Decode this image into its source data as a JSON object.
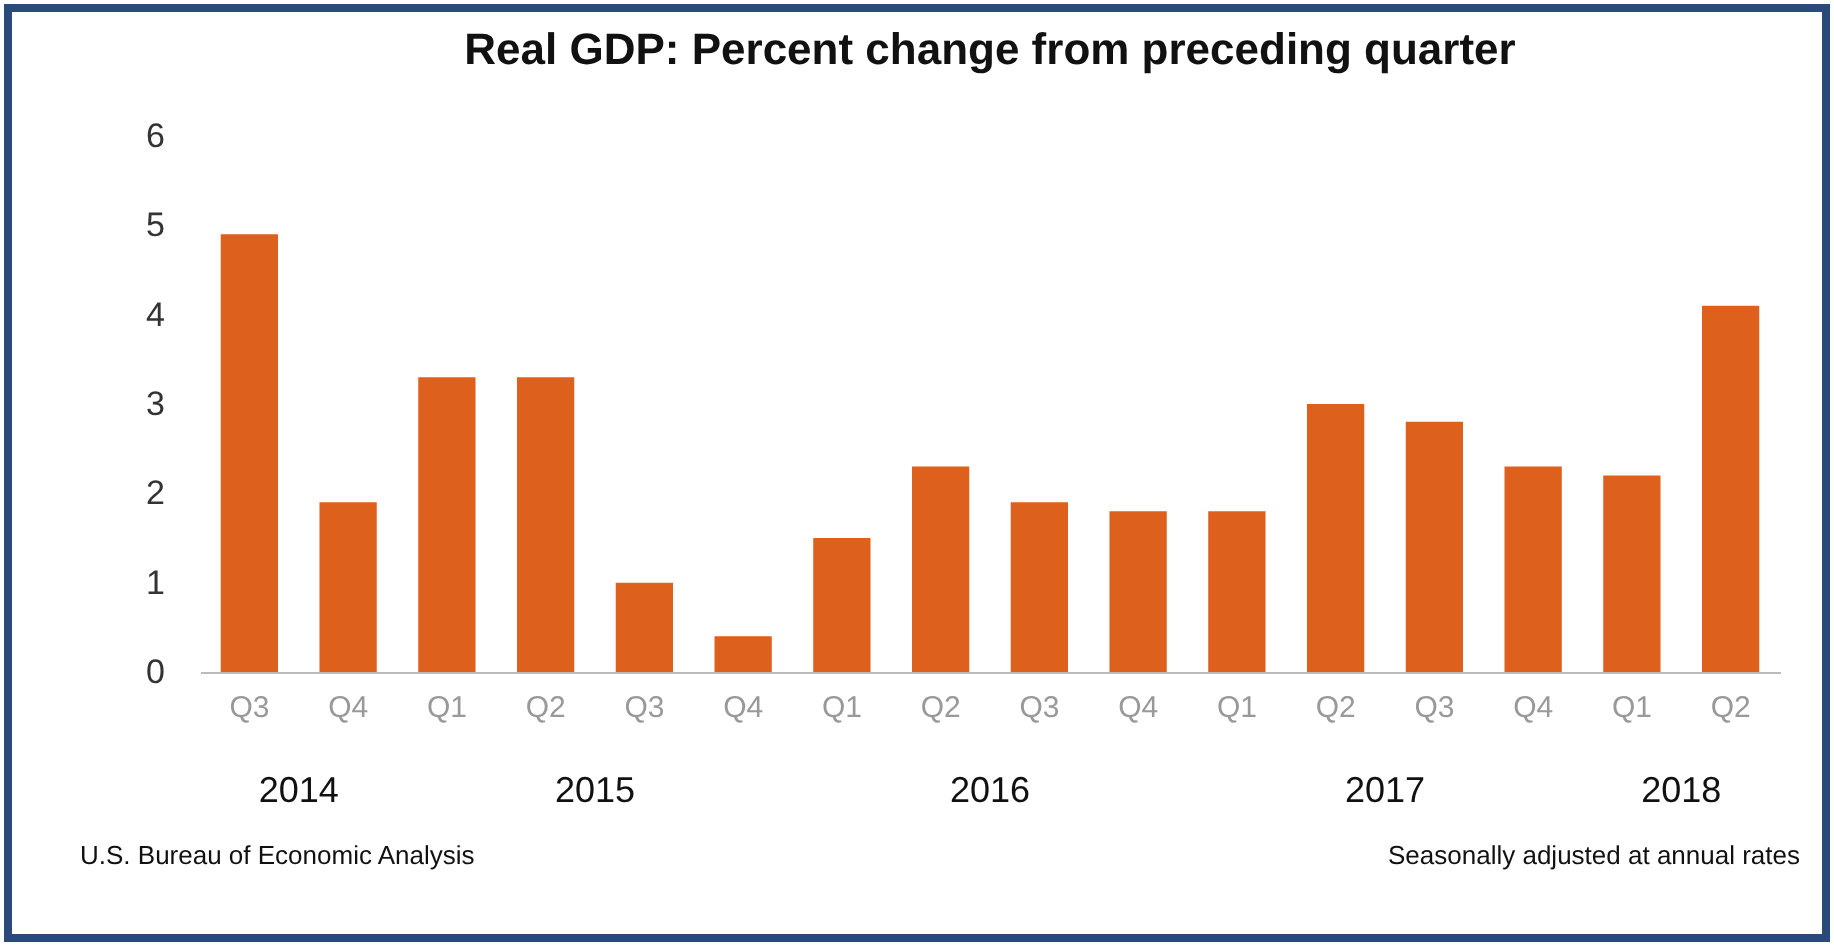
{
  "chart_data": {
    "type": "bar",
    "title": "Real GDP:  Percent change from preceding quarter",
    "categories": [
      "Q3",
      "Q4",
      "Q1",
      "Q2",
      "Q3",
      "Q4",
      "Q1",
      "Q2",
      "Q3",
      "Q4",
      "Q1",
      "Q2",
      "Q3",
      "Q4",
      "Q1",
      "Q2"
    ],
    "values": [
      4.9,
      1.9,
      3.3,
      3.3,
      1.0,
      0.4,
      1.5,
      2.3,
      1.9,
      1.8,
      1.8,
      3.0,
      2.8,
      2.3,
      2.2,
      4.1
    ],
    "color": "#dd611d",
    "ylim": [
      0,
      6
    ],
    "yticks": [
      0,
      1,
      2,
      3,
      4,
      5,
      6
    ],
    "annotations": [
      "2014",
      "2015",
      "2016",
      "2017",
      "2018",
      "U.S. Bureau of Economic Analysis",
      "Seasonally adjusted at annual rates"
    ]
  }
}
